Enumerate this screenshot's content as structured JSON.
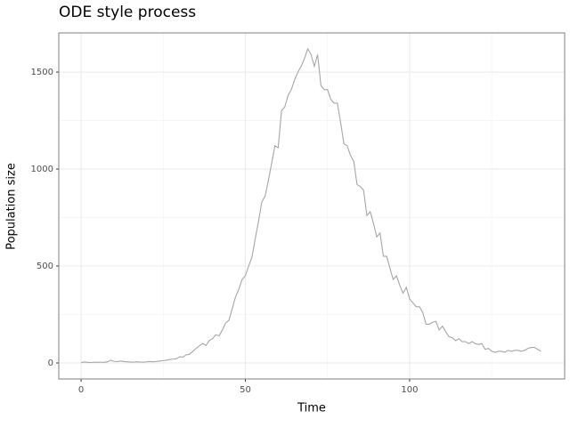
{
  "chart_data": {
    "type": "line",
    "title": "ODE style process",
    "xlabel": "Time",
    "ylabel": "Population size",
    "color": "#a6a6a6",
    "grid": true,
    "xlim": [
      -6.8,
      147.2
    ],
    "ylim": [
      -82.6,
      1702
    ],
    "xticks": [
      0,
      50,
      100
    ],
    "yticks": [
      0,
      500,
      1000,
      1500
    ],
    "xminorticks": [
      25,
      75,
      125
    ],
    "yminorticks": [
      250,
      750,
      1250
    ],
    "x": [
      0,
      1,
      2,
      3,
      4,
      5,
      6,
      7,
      8,
      9,
      10,
      11,
      12,
      13,
      14,
      15,
      16,
      17,
      18,
      19,
      20,
      21,
      22,
      23,
      24,
      25,
      26,
      27,
      28,
      29,
      30,
      31,
      32,
      33,
      34,
      35,
      36,
      37,
      38,
      39,
      40,
      41,
      42,
      43,
      44,
      45,
      46,
      47,
      48,
      49,
      50,
      51,
      52,
      53,
      54,
      55,
      56,
      57,
      58,
      59,
      60,
      61,
      62,
      63,
      64,
      65,
      66,
      67,
      68,
      69,
      70,
      71,
      72,
      73,
      74,
      75,
      76,
      77,
      78,
      79,
      80,
      81,
      82,
      83,
      84,
      85,
      86,
      87,
      88,
      89,
      90,
      91,
      92,
      93,
      94,
      95,
      96,
      97,
      98,
      99,
      100,
      101,
      102,
      103,
      104,
      105,
      106,
      107,
      108,
      109,
      110,
      111,
      112,
      113,
      114,
      115,
      116,
      117,
      118,
      119,
      120,
      121,
      122,
      123,
      124,
      125,
      126,
      127,
      128,
      129,
      130,
      131,
      132,
      133,
      134,
      135,
      136,
      137,
      138,
      139,
      140
    ],
    "values": [
      2,
      5,
      3,
      2,
      4,
      3,
      4,
      3,
      6,
      14,
      8,
      7,
      10,
      7,
      6,
      5,
      4,
      6,
      5,
      4,
      6,
      7,
      6,
      8,
      10,
      12,
      14,
      18,
      20,
      22,
      32,
      30,
      42,
      45,
      60,
      75,
      88,
      100,
      90,
      115,
      125,
      145,
      140,
      170,
      206,
      220,
      280,
      340,
      380,
      430,
      450,
      500,
      545,
      640,
      730,
      830,
      860,
      940,
      1030,
      1120,
      1110,
      1300,
      1320,
      1380,
      1410,
      1460,
      1500,
      1530,
      1570,
      1620,
      1590,
      1530,
      1590,
      1430,
      1410,
      1410,
      1360,
      1340,
      1340,
      1240,
      1130,
      1120,
      1070,
      1040,
      920,
      910,
      890,
      760,
      780,
      720,
      650,
      670,
      550,
      550,
      490,
      430,
      450,
      400,
      360,
      390,
      330,
      310,
      290,
      290,
      260,
      200,
      200,
      210,
      215,
      170,
      190,
      160,
      135,
      130,
      115,
      125,
      110,
      110,
      100,
      110,
      100,
      95,
      100,
      70,
      75,
      60,
      55,
      60,
      60,
      55,
      65,
      60,
      65,
      65,
      60,
      65,
      75,
      80,
      80,
      70,
      60
    ]
  }
}
